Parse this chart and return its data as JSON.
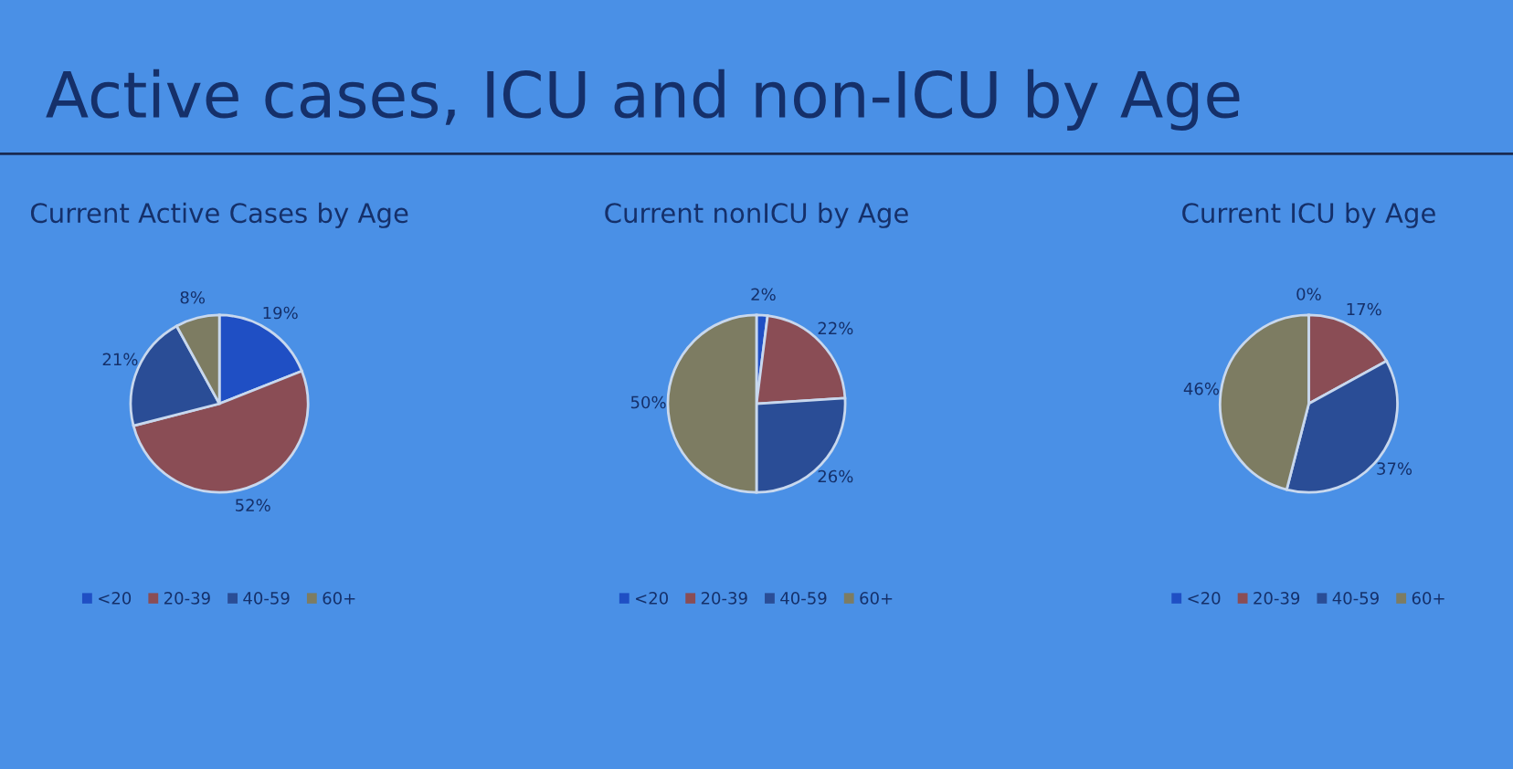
{
  "chart_data": [
    {
      "type": "other",
      "title": "Active cases, ICU and non-ICU by Age"
    },
    {
      "type": "pie",
      "title": "Current Active Cases by Age",
      "categories": [
        "<20",
        "20-39",
        "40-59",
        "60+"
      ],
      "values": [
        19,
        52,
        21,
        8
      ],
      "value_labels": [
        "19%",
        "52%",
        "21%",
        "8%"
      ],
      "colors": [
        "#1f4fc4",
        "#8a4d55",
        "#2a4d96",
        "#7d7c62"
      ],
      "legend": "bottom"
    },
    {
      "type": "pie",
      "title": "Current nonICU by Age",
      "categories": [
        "<20",
        "20-39",
        "40-59",
        "60+"
      ],
      "values": [
        2,
        22,
        26,
        50
      ],
      "value_labels": [
        "2%",
        "22%",
        "26%",
        "50%"
      ],
      "colors": [
        "#1f4fc4",
        "#8a4d55",
        "#2a4d96",
        "#7d7c62"
      ],
      "legend": "bottom"
    },
    {
      "type": "pie",
      "title": "Current ICU by Age",
      "categories": [
        "<20",
        "20-39",
        "40-59",
        "60+"
      ],
      "values": [
        0,
        17,
        37,
        46
      ],
      "value_labels": [
        "0%",
        "17%",
        "37%",
        "46%"
      ],
      "colors": [
        "#1f4fc4",
        "#8a4d55",
        "#2a4d96",
        "#7d7c62"
      ],
      "legend": "bottom"
    }
  ]
}
